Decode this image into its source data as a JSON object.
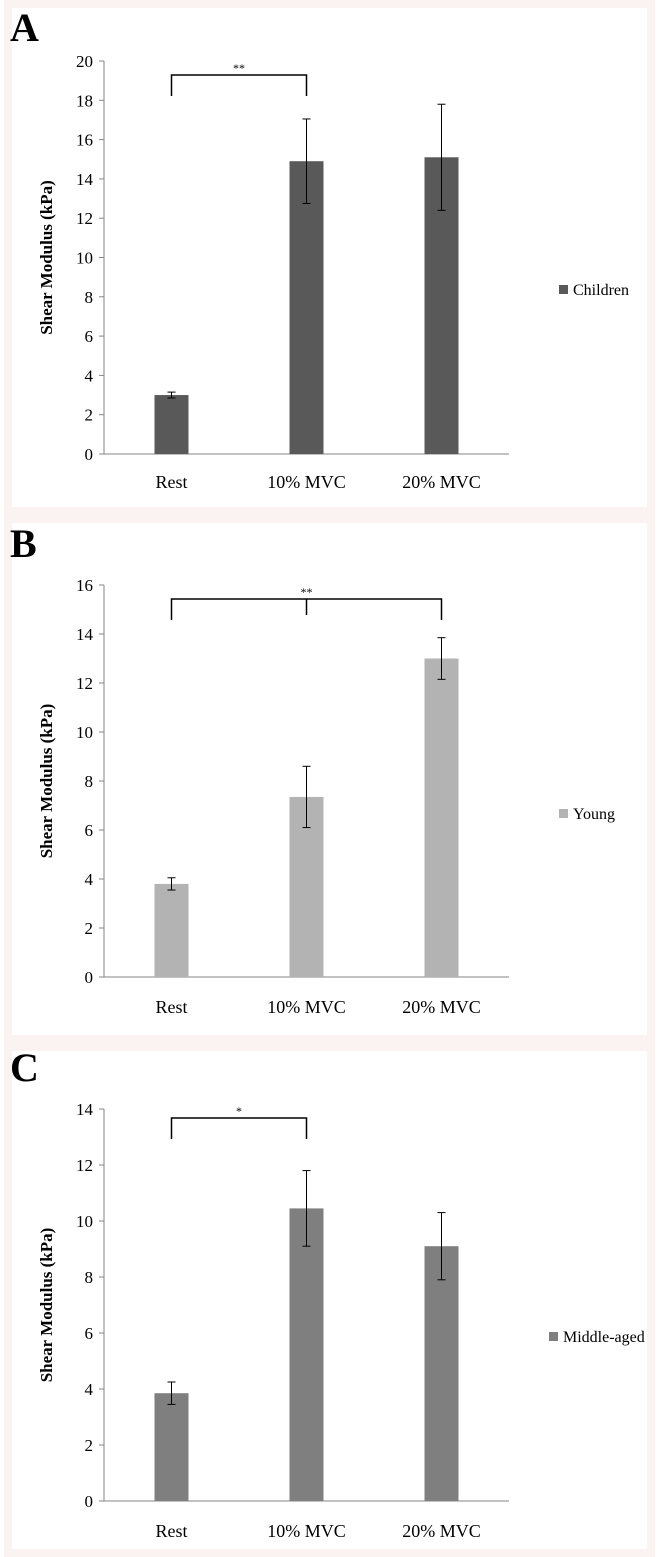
{
  "panels": [
    {
      "letter": "A",
      "legend_color": "#595959"
    },
    {
      "letter": "B",
      "legend_color": "#b3b3b3"
    },
    {
      "letter": "C",
      "legend_color": "#7f7f7f"
    }
  ],
  "chart_data": [
    {
      "type": "bar",
      "categories": [
        "Rest",
        "10% MVC",
        "20% MVC"
      ],
      "series": [
        {
          "name": "Children",
          "values": [
            3.0,
            14.9,
            15.1
          ],
          "errors": [
            0.15,
            2.15,
            2.7
          ],
          "color": "#595959"
        }
      ],
      "ylabel": "Shear Modulus (kPa)",
      "ylim": [
        0,
        20
      ],
      "yticks": [
        0,
        2,
        4,
        6,
        8,
        10,
        12,
        14,
        16,
        18,
        20
      ],
      "legend_position": "right",
      "grid": false,
      "significance": [
        {
          "from": 0,
          "to": 1,
          "label": "**"
        }
      ]
    },
    {
      "type": "bar",
      "categories": [
        "Rest",
        "10% MVC",
        "20% MVC"
      ],
      "series": [
        {
          "name": "Young",
          "values": [
            3.8,
            7.35,
            13.0
          ],
          "errors": [
            0.25,
            1.25,
            0.85
          ],
          "color": "#b3b3b3"
        }
      ],
      "ylabel": "Shear Modulus (kPa)",
      "ylim": [
        0,
        16
      ],
      "yticks": [
        0,
        2,
        4,
        6,
        8,
        10,
        12,
        14,
        16
      ],
      "legend_position": "right",
      "grid": false,
      "significance": [
        {
          "from": 0,
          "to": 2,
          "mid": 1,
          "label": "**"
        }
      ]
    },
    {
      "type": "bar",
      "categories": [
        "Rest",
        "10% MVC",
        "20% MVC"
      ],
      "series": [
        {
          "name": "Middle-aged",
          "values": [
            3.85,
            10.45,
            9.1
          ],
          "errors": [
            0.4,
            1.35,
            1.2
          ],
          "color": "#7f7f7f"
        }
      ],
      "ylabel": "Shear Modulus (kPa)",
      "ylim": [
        0,
        14
      ],
      "yticks": [
        0,
        2,
        4,
        6,
        8,
        10,
        12,
        14
      ],
      "legend_position": "right",
      "grid": false,
      "significance": [
        {
          "from": 0,
          "to": 1,
          "label": "*"
        }
      ]
    }
  ]
}
